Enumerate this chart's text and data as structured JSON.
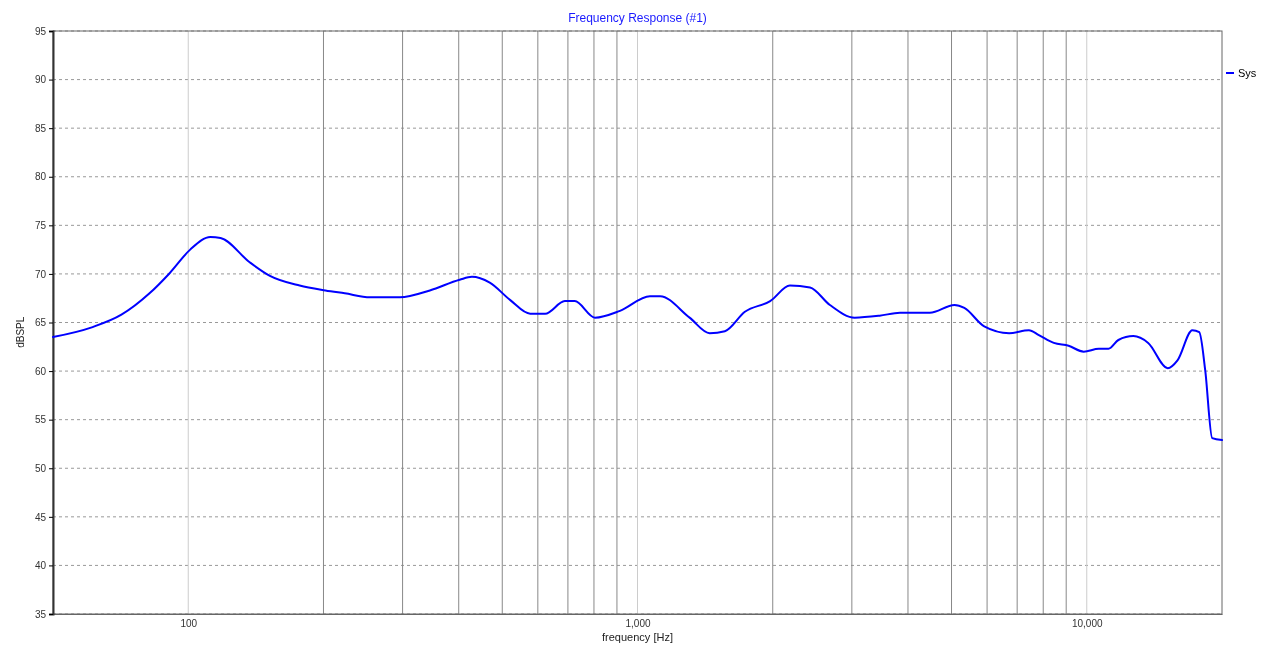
{
  "chart_data": {
    "type": "line",
    "title": "Frequency Response (#1)",
    "xlabel": "frequency [Hz]",
    "ylabel": "dBSPL",
    "log": "x",
    "grid": true,
    "legend": "top right",
    "marker": "none",
    "line_style": "solid",
    "xlim": [
      50,
      20000
    ],
    "ylim": [
      35,
      95
    ],
    "xticks": [
      {
        "value": 100,
        "label": "100"
      },
      {
        "value": 200,
        "label": null
      },
      {
        "value": 300,
        "label": null
      },
      {
        "value": 400,
        "label": null
      },
      {
        "value": 500,
        "label": null
      },
      {
        "value": 600,
        "label": null
      },
      {
        "value": 700,
        "label": null
      },
      {
        "value": 800,
        "label": null
      },
      {
        "value": 900,
        "label": null
      },
      {
        "value": 1000,
        "label": "1,000"
      },
      {
        "value": 2000,
        "label": null
      },
      {
        "value": 3000,
        "label": null
      },
      {
        "value": 4000,
        "label": null
      },
      {
        "value": 5000,
        "label": null
      },
      {
        "value": 6000,
        "label": null
      },
      {
        "value": 7000,
        "label": null
      },
      {
        "value": 8000,
        "label": null
      },
      {
        "value": 9000,
        "label": null
      },
      {
        "value": 10000,
        "label": "10,000"
      }
    ],
    "yticks": [
      35,
      40,
      45,
      50,
      55,
      60,
      65,
      70,
      75,
      80,
      85,
      90,
      95
    ],
    "series": [
      {
        "name": "Sys",
        "color": "#0000ff",
        "x": [
          50,
          61,
          71,
          82,
          91,
          101,
          112,
          118,
          137,
          152,
          177,
          202,
          223,
          254,
          296,
          345,
          402,
          428,
          469,
          521,
          577,
          623,
          689,
          725,
          804,
          914,
          1066,
          1123,
          1306,
          1448,
          1565,
          1734,
          1974,
          2184,
          2421,
          2681,
          3043,
          3459,
          3840,
          4474,
          5077,
          5339,
          5912,
          6720,
          7434,
          7823,
          8447,
          9112,
          9847,
          10637,
          11180,
          11760,
          12700,
          13700,
          15150,
          15920,
          17180,
          17800,
          18350,
          19020,
          20000
        ],
        "values": [
          63.5,
          64.5,
          65.8,
          68.0,
          70.1,
          72.5,
          73.8,
          73.7,
          71.2,
          69.8,
          68.8,
          68.3,
          68.0,
          67.6,
          67.6,
          68.3,
          69.4,
          69.7,
          69.1,
          67.3,
          65.9,
          65.9,
          67.2,
          67.2,
          65.5,
          66.2,
          67.7,
          67.7,
          65.5,
          63.9,
          64.1,
          66.1,
          67.2,
          68.8,
          68.6,
          66.8,
          65.5,
          65.7,
          66.0,
          66.0,
          66.8,
          66.5,
          64.6,
          63.9,
          64.2,
          63.7,
          62.9,
          62.6,
          62.0,
          62.3,
          62.3,
          63.2,
          63.6,
          62.9,
          60.3,
          61.1,
          64.2,
          64.0,
          60.1,
          53.1,
          52.9
        ]
      }
    ]
  }
}
